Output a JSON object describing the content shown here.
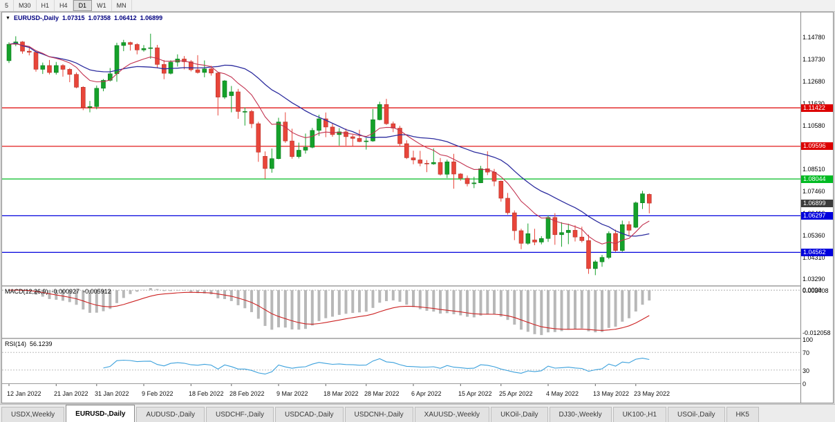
{
  "toolbar": {
    "timeframes": [
      "5",
      "M30",
      "H1",
      "H4",
      "D1",
      "W1",
      "MN"
    ],
    "active_timeframe": "D1"
  },
  "chart": {
    "info_line": {
      "marker": "▼",
      "symbol_period": "EURUSD-,Daily",
      "open": "1.07315",
      "high": "1.07358",
      "low": "1.06412",
      "close": "1.06899"
    },
    "price_axis_labels": [
      "1.14780",
      "1.13730",
      "1.12680",
      "1.11630",
      "1.10580",
      "1.09530",
      "1.08510",
      "1.07460",
      "1.06410",
      "1.05360",
      "1.04310",
      "1.03290"
    ],
    "levels": [
      {
        "label": "1.11422",
        "value": 1.11422,
        "color": "#dd0000"
      },
      {
        "label": "1.09596",
        "value": 1.09596,
        "color": "#dd0000"
      },
      {
        "label": "1.08044",
        "value": 1.08044,
        "color": "#00bb22"
      },
      {
        "label": "1.06297",
        "value": 1.06297,
        "color": "#0000dd"
      },
      {
        "label": "1.04562",
        "value": 1.04562,
        "color": "#0000dd"
      }
    ],
    "current_price_tag": {
      "label": "1.06899",
      "value": 1.06899,
      "color": "#3c3c3c"
    },
    "macd": {
      "label": "MACD(12,26,9)",
      "value_main": "-0.000927",
      "value_signal": "-0.005912",
      "axis_labels": [
        "0.003408",
        "0.0000",
        "-0.012058"
      ]
    },
    "rsi": {
      "label": "RSI(14)",
      "value": "56.1239",
      "axis_labels": [
        "100",
        "70",
        "30",
        "0"
      ],
      "levels": [
        70,
        30
      ]
    },
    "date_labels": [
      {
        "text": "12 Jan 2022",
        "i": 0
      },
      {
        "text": "21 Jan 2022",
        "i": 7
      },
      {
        "text": "31 Jan 2022",
        "i": 13
      },
      {
        "text": "9 Feb 2022",
        "i": 20
      },
      {
        "text": "18 Feb 2022",
        "i": 27
      },
      {
        "text": "28 Feb 2022",
        "i": 33
      },
      {
        "text": "9 Mar 2022",
        "i": 40
      },
      {
        "text": "18 Mar 2022",
        "i": 47
      },
      {
        "text": "28 Mar 2022",
        "i": 53
      },
      {
        "text": "6 Apr 2022",
        "i": 60
      },
      {
        "text": "15 Apr 2022",
        "i": 67
      },
      {
        "text": "25 Apr 2022",
        "i": 73
      },
      {
        "text": "4 May 2022",
        "i": 80
      },
      {
        "text": "13 May 2022",
        "i": 87
      },
      {
        "text": "23 May 2022",
        "i": 93
      }
    ]
  },
  "chart_data": {
    "type": "candlestick",
    "symbol": "EURUSD-",
    "timeframe": "Daily",
    "title": "EURUSD-,Daily 1.07315 1.07358 1.06412 1.06899",
    "ylim": [
      1.03,
      1.1595
    ],
    "x_range": "12 Jan 2022 - 25 May 2022",
    "indicators": [
      "MACD(12,26,9)",
      "RSI(14)",
      "MA slow (blue)",
      "MA fast (red)"
    ],
    "ma_slow_period": 20,
    "ma_fast_period": 10,
    "colors": {
      "up": "#15a12a",
      "down": "#e8453a",
      "up_dark": "#0b7a1d",
      "down_dark": "#b5342b",
      "ma_slow": "#2b2b9e",
      "ma_fast": "#c2314f",
      "macd_hist": "#b8b8b8",
      "macd_signal": "#cc2222",
      "rsi_line": "#3aa0dc"
    },
    "ohlc": [
      [
        1.1366,
        1.1453,
        1.1355,
        1.1444
      ],
      [
        1.1444,
        1.1482,
        1.1435,
        1.1455
      ],
      [
        1.1455,
        1.1459,
        1.1399,
        1.1411
      ],
      [
        1.1411,
        1.1435,
        1.1391,
        1.1406
      ],
      [
        1.1406,
        1.141,
        1.1314,
        1.1325
      ],
      [
        1.1325,
        1.1357,
        1.1303,
        1.1343
      ],
      [
        1.1343,
        1.1369,
        1.1301,
        1.131
      ],
      [
        1.131,
        1.136,
        1.13,
        1.1343
      ],
      [
        1.1343,
        1.1349,
        1.129,
        1.1325
      ],
      [
        1.1325,
        1.1331,
        1.1264,
        1.1301
      ],
      [
        1.1301,
        1.131,
        1.1235,
        1.124
      ],
      [
        1.124,
        1.1245,
        1.1131,
        1.1144
      ],
      [
        1.1144,
        1.1175,
        1.1121,
        1.1148
      ],
      [
        1.1148,
        1.1248,
        1.1135,
        1.1235
      ],
      [
        1.1235,
        1.1279,
        1.1221,
        1.1273
      ],
      [
        1.1273,
        1.1331,
        1.1267,
        1.1304
      ],
      [
        1.1304,
        1.1451,
        1.1266,
        1.1438
      ],
      [
        1.1438,
        1.1465,
        1.1411,
        1.1452
      ],
      [
        1.1452,
        1.1456,
        1.1414,
        1.1443
      ],
      [
        1.1443,
        1.1449,
        1.1396,
        1.1417
      ],
      [
        1.1417,
        1.144,
        1.1409,
        1.1424
      ],
      [
        1.1424,
        1.1494,
        1.1375,
        1.1427
      ],
      [
        1.1427,
        1.1441,
        1.133,
        1.1348
      ],
      [
        1.1348,
        1.1369,
        1.1278,
        1.1306
      ],
      [
        1.1306,
        1.1368,
        1.1301,
        1.1359
      ],
      [
        1.1359,
        1.1396,
        1.1338,
        1.1374
      ],
      [
        1.1374,
        1.1388,
        1.1325,
        1.1361
      ],
      [
        1.1361,
        1.1369,
        1.1315,
        1.1323
      ],
      [
        1.1323,
        1.1392,
        1.1305,
        1.131
      ],
      [
        1.131,
        1.1367,
        1.1287,
        1.1327
      ],
      [
        1.1327,
        1.1342,
        1.1295,
        1.1307
      ],
      [
        1.1307,
        1.1311,
        1.1106,
        1.1193
      ],
      [
        1.1193,
        1.1274,
        1.1184,
        1.127
      ],
      [
        1.12,
        1.1246,
        1.1121,
        1.1218
      ],
      [
        1.1218,
        1.1232,
        1.109,
        1.1125
      ],
      [
        1.1125,
        1.1144,
        1.1058,
        1.1125
      ],
      [
        1.1125,
        1.1133,
        1.1046,
        1.1067
      ],
      [
        1.1067,
        1.1076,
        1.0886,
        1.0932
      ],
      [
        1.0912,
        1.0935,
        1.0806,
        1.0854
      ],
      [
        1.0854,
        1.0949,
        1.0834,
        1.0901
      ],
      [
        1.0901,
        1.1095,
        1.0898,
        1.1075
      ],
      [
        1.1075,
        1.1121,
        1.0976,
        1.0985
      ],
      [
        1.0985,
        1.1043,
        1.0901,
        1.0911
      ],
      [
        1.0911,
        1.0977,
        1.0902,
        1.0941
      ],
      [
        1.0941,
        1.102,
        1.0925,
        1.0955
      ],
      [
        1.0955,
        1.1047,
        1.095,
        1.1035
      ],
      [
        1.1035,
        1.1109,
        1.1009,
        1.109
      ],
      [
        1.109,
        1.112,
        1.1003,
        1.1051
      ],
      [
        1.1051,
        1.1069,
        1.1005,
        1.1015
      ],
      [
        1.1015,
        1.1046,
        1.0963,
        1.1028
      ],
      [
        1.1028,
        1.1044,
        1.0963,
        1.1005
      ],
      [
        1.1005,
        1.1014,
        1.0961,
        1.0997
      ],
      [
        1.0997,
        1.1038,
        1.0979,
        1.0982
      ],
      [
        1.0982,
        1.0999,
        1.0944,
        1.0985
      ],
      [
        1.0985,
        1.1137,
        1.0981,
        1.1086
      ],
      [
        1.1086,
        1.1171,
        1.1083,
        1.1158
      ],
      [
        1.1158,
        1.1185,
        1.1061,
        1.1067
      ],
      [
        1.1067,
        1.1077,
        1.1027,
        1.1046
      ],
      [
        1.1046,
        1.1057,
        1.096,
        1.0972
      ],
      [
        1.0972,
        1.0988,
        1.0899,
        1.0905
      ],
      [
        1.0905,
        1.0939,
        1.0874,
        1.0895
      ],
      [
        1.0895,
        1.0938,
        1.0865,
        1.0879
      ],
      [
        1.0879,
        1.0894,
        1.0837,
        1.0876
      ],
      [
        1.0876,
        1.095,
        1.0872,
        1.0883
      ],
      [
        1.0883,
        1.0904,
        1.0821,
        1.0827
      ],
      [
        1.0827,
        1.0896,
        1.0809,
        1.0886
      ],
      [
        1.0886,
        1.0924,
        1.0758,
        1.0828
      ],
      [
        1.0828,
        1.0832,
        1.0796,
        1.0808
      ],
      [
        1.0808,
        1.0821,
        1.0769,
        1.0782
      ],
      [
        1.0782,
        1.0815,
        1.0761,
        1.0786
      ],
      [
        1.0786,
        1.0867,
        1.0785,
        1.0853
      ],
      [
        1.0853,
        1.0936,
        1.0823,
        1.0837
      ],
      [
        1.0837,
        1.0852,
        1.077,
        1.0794
      ],
      [
        1.0794,
        1.0797,
        1.0697,
        1.0713
      ],
      [
        1.0713,
        1.0738,
        1.0635,
        1.0644
      ],
      [
        1.0644,
        1.0655,
        1.0514,
        1.0559
      ],
      [
        1.0559,
        1.0568,
        1.0471,
        1.0499
      ],
      [
        1.0499,
        1.0593,
        1.0492,
        1.0545
      ],
      [
        1.0515,
        1.0568,
        1.049,
        1.0505
      ],
      [
        1.0505,
        1.0533,
        1.0494,
        1.0522
      ],
      [
        1.0522,
        1.0632,
        1.0506,
        1.0622
      ],
      [
        1.0622,
        1.0642,
        1.0492,
        1.054
      ],
      [
        1.054,
        1.0599,
        1.0483,
        1.055
      ],
      [
        1.055,
        1.0592,
        1.0495,
        1.0561
      ],
      [
        1.0561,
        1.0585,
        1.0508,
        1.0529
      ],
      [
        1.0529,
        1.0578,
        1.0503,
        1.0512
      ],
      [
        1.0512,
        1.054,
        1.0354,
        1.0379
      ],
      [
        1.0379,
        1.0419,
        1.0348,
        1.0411
      ],
      [
        1.0411,
        1.0444,
        1.0388,
        1.0432
      ],
      [
        1.0432,
        1.0556,
        1.0424,
        1.0546
      ],
      [
        1.0546,
        1.0564,
        1.0459,
        1.0465
      ],
      [
        1.0465,
        1.0607,
        1.0459,
        1.0588
      ],
      [
        1.0588,
        1.0604,
        1.0532,
        1.0561
      ],
      [
        1.0575,
        1.0697,
        1.0571,
        1.0691
      ],
      [
        1.0691,
        1.0748,
        1.0662,
        1.0734
      ],
      [
        1.07315,
        1.07358,
        1.06412,
        1.06899
      ]
    ]
  },
  "tabs": {
    "active": "EURUSD-,Daily",
    "items": [
      "USDX,Weekly",
      "EURUSD-,Daily",
      "AUDUSD-,Daily",
      "USDCHF-,Daily",
      "USDCAD-,Daily",
      "USDCNH-,Daily",
      "XAUUSD-,Weekly",
      "UKOil-,Daily",
      "DJ30-,Weekly",
      "UK100-,H1",
      "USOil-,Daily",
      "HK5"
    ]
  }
}
